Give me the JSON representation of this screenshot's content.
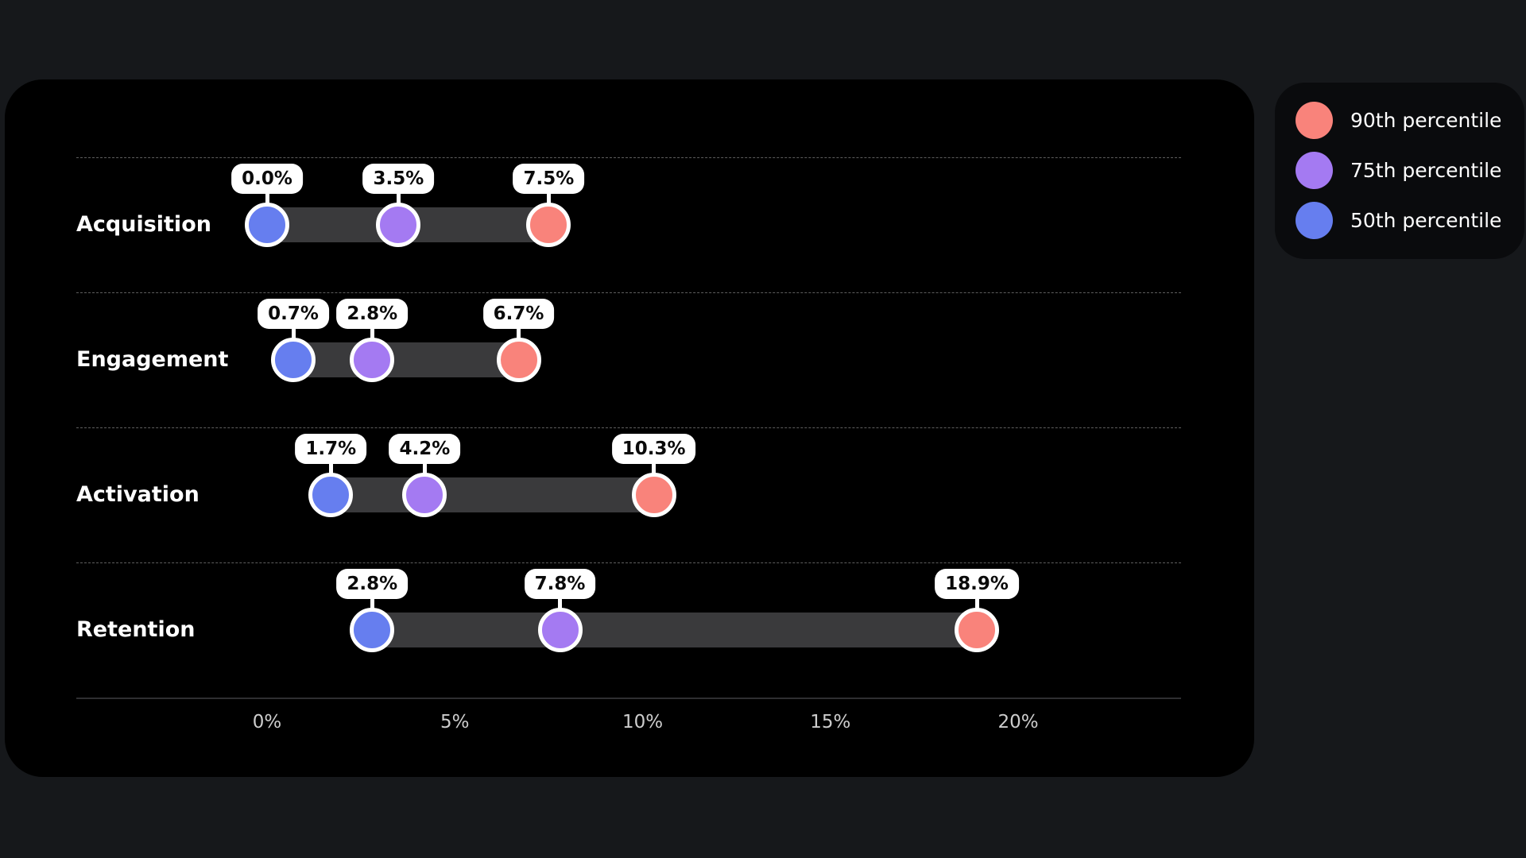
{
  "page": {
    "background": "#16181B"
  },
  "chart_card": {
    "background": "#000000"
  },
  "chart_data": {
    "type": "dumbbell",
    "title": "",
    "xlabel": "",
    "ylabel": "",
    "categories": [
      "Acquisition",
      "Engagement",
      "Activation",
      "Retention"
    ],
    "series": [
      {
        "name": "50th percentile",
        "color": "#667EEF",
        "values": [
          0.0,
          0.7,
          1.7,
          2.8
        ],
        "labels": [
          "0.0%",
          "0.7%",
          "1.7%",
          "2.8%"
        ]
      },
      {
        "name": "75th percentile",
        "color": "#A47AF2",
        "values": [
          3.5,
          2.8,
          4.2,
          7.8
        ],
        "labels": [
          "3.5%",
          "2.8%",
          "4.2%",
          "7.8%"
        ]
      },
      {
        "name": "90th percentile",
        "color": "#F9837B",
        "values": [
          7.5,
          6.7,
          10.3,
          18.9
        ],
        "labels": [
          "7.5%",
          "6.7%",
          "10.3%",
          "18.9%"
        ]
      }
    ],
    "x_ticks": [
      {
        "value": 0,
        "label": "0%"
      },
      {
        "value": 5,
        "label": "5%"
      },
      {
        "value": 10,
        "label": "10%"
      },
      {
        "value": 15,
        "label": "15%"
      },
      {
        "value": 20,
        "label": "20%"
      }
    ],
    "xlim": [
      0,
      20
    ],
    "grid": false,
    "bar_color": "#3A3A3C",
    "legend_position": "top-right-outside"
  },
  "legend": {
    "background": "#0A0B0D",
    "items": [
      {
        "label": "90th percentile",
        "color": "#F9837B"
      },
      {
        "label": "75th percentile",
        "color": "#A47AF2"
      },
      {
        "label": "50th percentile",
        "color": "#667EEF"
      }
    ]
  }
}
